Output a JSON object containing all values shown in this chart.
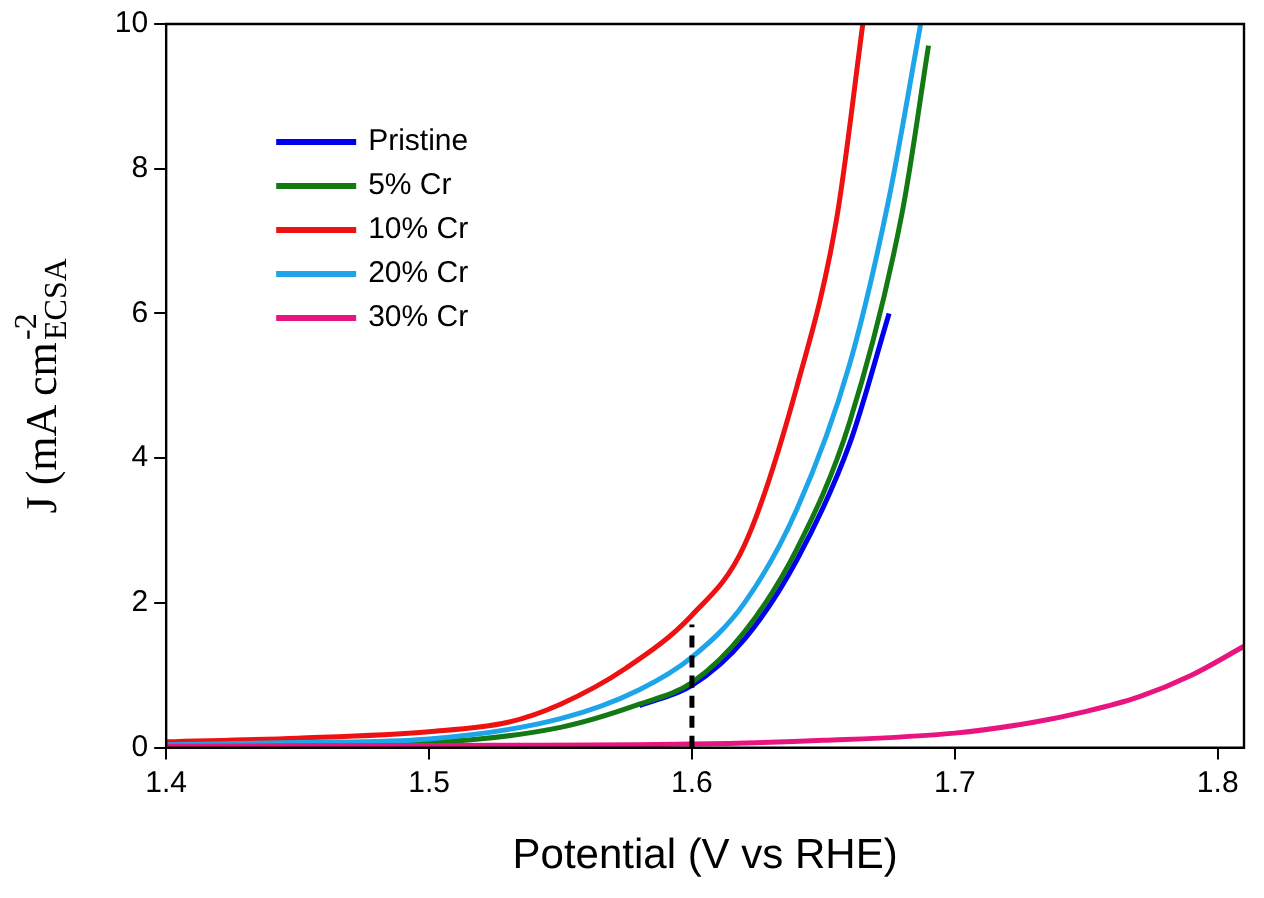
{
  "chart_data": {
    "type": "line",
    "xlabel": "Potential (V vs RHE)",
    "ylabel": "J (mA cm$_{ECSA}$$^{-2}$",
    "xlim": [
      1.4,
      1.81
    ],
    "ylim": [
      0,
      10
    ],
    "xticks": [
      1.4,
      1.5,
      1.6,
      1.7,
      1.8
    ],
    "yticks": [
      0,
      2,
      4,
      6,
      8,
      10
    ],
    "grid": false,
    "legend": "top left",
    "marker": "none",
    "line_style": "solid",
    "series": [
      {
        "name": "Pristine",
        "color": "#0000ee",
        "x": [
          1.58,
          1.6,
          1.62,
          1.64,
          1.66,
          1.675
        ],
        "values": [
          0.58,
          0.86,
          1.5,
          2.6,
          4.2,
          6.0
        ]
      },
      {
        "name": "5% Cr",
        "color": "#137a13",
        "x": [
          1.4,
          1.45,
          1.5,
          1.55,
          1.58,
          1.6,
          1.62,
          1.64,
          1.66,
          1.68,
          1.69
        ],
        "values": [
          0.02,
          0.04,
          0.07,
          0.28,
          0.6,
          0.9,
          1.6,
          2.75,
          4.5,
          7.4,
          9.7
        ]
      },
      {
        "name": "10% Cr",
        "color": "#ee1111",
        "x": [
          1.4,
          1.45,
          1.5,
          1.53,
          1.55,
          1.575,
          1.6,
          1.62,
          1.64,
          1.655,
          1.665
        ],
        "values": [
          0.08,
          0.13,
          0.22,
          0.35,
          0.6,
          1.1,
          1.83,
          2.8,
          5.0,
          7.3,
          10
        ]
      },
      {
        "name": "20% Cr",
        "color": "#1ea5e9",
        "x": [
          1.4,
          1.45,
          1.5,
          1.55,
          1.58,
          1.6,
          1.62,
          1.64,
          1.66,
          1.675,
          1.687
        ],
        "values": [
          0.04,
          0.07,
          0.12,
          0.4,
          0.8,
          1.25,
          2.0,
          3.3,
          5.3,
          7.6,
          10
        ]
      },
      {
        "name": "30% Cr",
        "color": "#e8147f",
        "x": [
          1.4,
          1.5,
          1.6,
          1.65,
          1.7,
          1.73,
          1.75,
          1.77,
          1.79,
          1.81
        ],
        "values": [
          0.02,
          0.03,
          0.05,
          0.1,
          0.2,
          0.35,
          0.5,
          0.7,
          1.0,
          1.4
        ]
      },
      {
        "color": "#000000",
        "line_style": "dashed",
        "x": [
          1.6,
          1.6
        ],
        "values": [
          0,
          1.7
        ]
      }
    ]
  }
}
